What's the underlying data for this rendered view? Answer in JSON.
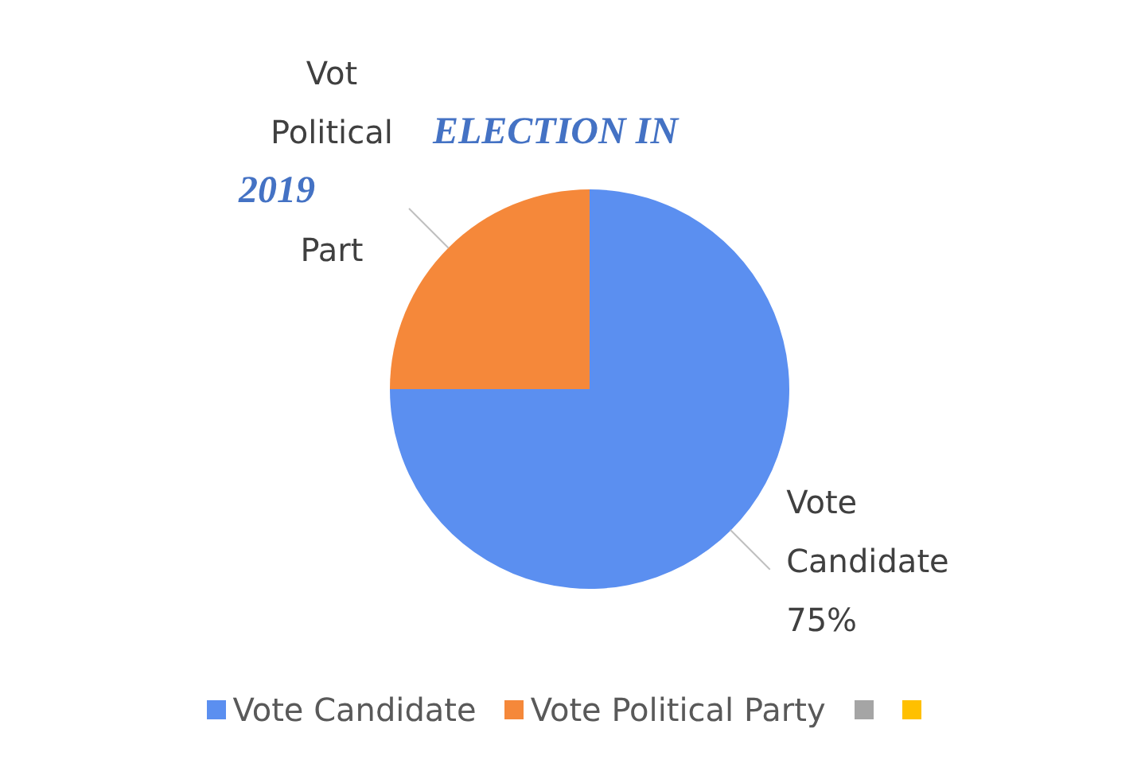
{
  "chart_data": {
    "type": "pie",
    "title": "ELECTION IN 2019",
    "categories": [
      "Vote Candidate",
      "Vote Political Party",
      null,
      null
    ],
    "values": [
      75,
      25,
      0,
      0
    ],
    "colors": [
      "#5b8ff0",
      "#f5883a",
      "#a5a5a5",
      "#ffc000"
    ],
    "value_labels": [
      "Vote Candidate 75%",
      "Vot Political Part",
      null,
      null
    ],
    "legend": "bottom"
  }
}
